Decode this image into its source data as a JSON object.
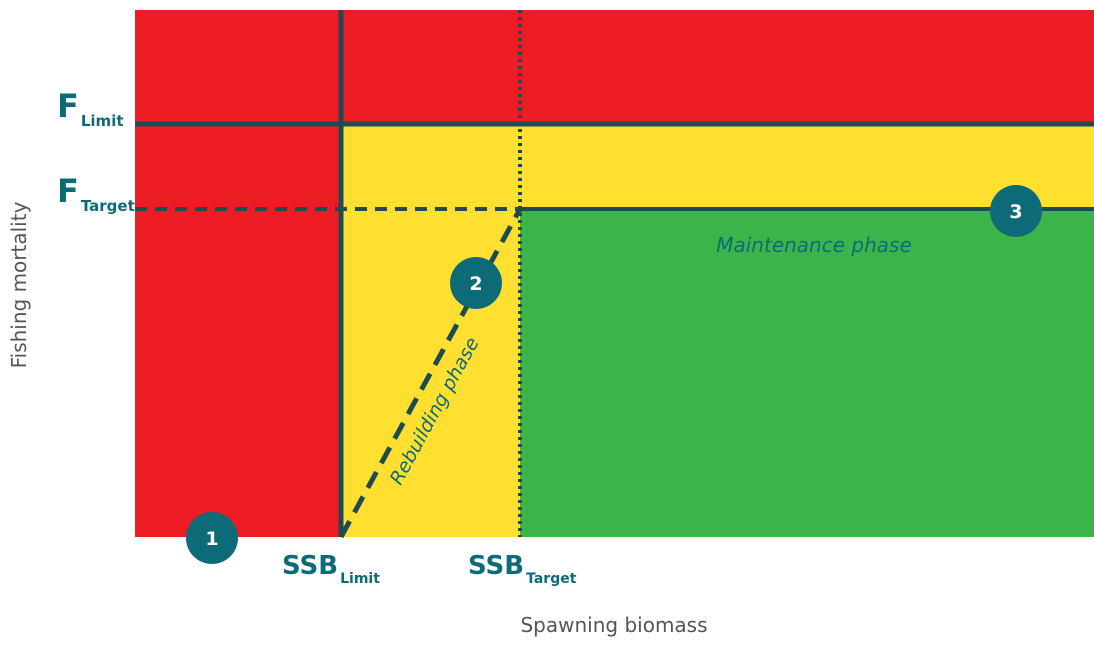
{
  "colors": {
    "red": "#ED1C24",
    "yellow": "#FFE030",
    "green": "#3BB54A",
    "line": "#1E4A50",
    "badge": "#0D6B78",
    "label": "#0D6B78",
    "axis_text": "#555555"
  },
  "axes": {
    "x_title": "Spawning biomass",
    "y_title": "Fishing mortality"
  },
  "y_labels": {
    "f_limit": {
      "main": "F",
      "sub": "Limit"
    },
    "f_target": {
      "main": "F",
      "sub": "Target"
    }
  },
  "x_labels": {
    "ssb_limit": {
      "main": "SSB",
      "sub": "Limit"
    },
    "ssb_target": {
      "main": "SSB",
      "sub": "Target"
    }
  },
  "phases": {
    "maintenance": "Maintenance phase",
    "rebuilding": "Rebuilding phase"
  },
  "badges": {
    "one": "1",
    "two": "2",
    "three": "3"
  }
}
